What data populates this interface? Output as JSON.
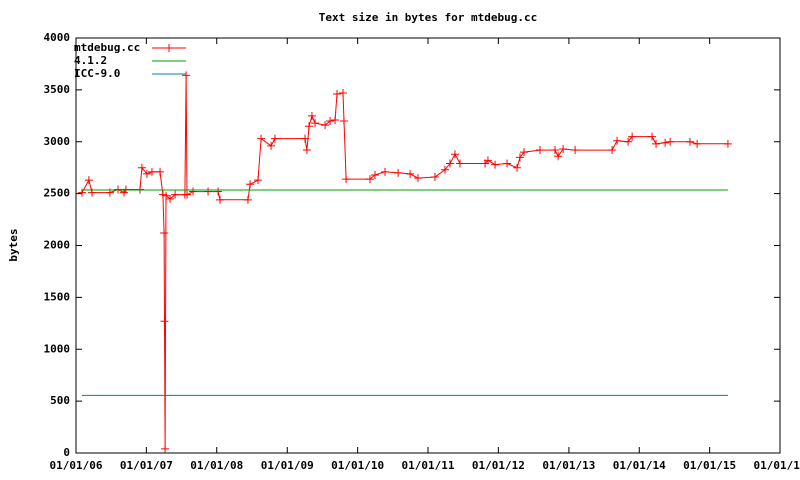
{
  "chart_data": {
    "type": "line",
    "title": "Text size in bytes for mtdebug.cc",
    "y_label": "bytes",
    "xlim": [
      "2006-01-01",
      "2016-01-01"
    ],
    "xticks": [
      {
        "value": "2006-01-01",
        "label": "01/01/06"
      },
      {
        "value": "2007-01-01",
        "label": "01/01/07"
      },
      {
        "value": "2008-01-01",
        "label": "01/01/08"
      },
      {
        "value": "2009-01-01",
        "label": "01/01/09"
      },
      {
        "value": "2010-01-01",
        "label": "01/01/10"
      },
      {
        "value": "2011-01-01",
        "label": "01/01/11"
      },
      {
        "value": "2012-01-01",
        "label": "01/01/12"
      },
      {
        "value": "2013-01-01",
        "label": "01/01/13"
      },
      {
        "value": "2014-01-01",
        "label": "01/01/14"
      },
      {
        "value": "2015-01-01",
        "label": "01/01/15"
      },
      {
        "value": "2016-01-01",
        "label": "01/01/16"
      }
    ],
    "ylim": [
      0,
      4000
    ],
    "yticks": [
      0,
      500,
      1000,
      1500,
      2000,
      2500,
      3000,
      3500,
      4000
    ],
    "legend": "top-left",
    "series": [
      {
        "name": "mtdebug.cc",
        "color": "#ff0000",
        "marker": "+",
        "x": [
          "2006-02-01",
          "2006-03-09",
          "2006-03-25",
          "2006-06-26",
          "2006-08-07",
          "2006-09-07",
          "2006-09-17",
          "2006-11-29",
          "2006-12-09",
          "2007-01-04",
          "2007-01-30",
          "2007-03-13",
          "2007-03-28",
          "2007-04-03",
          "2007-04-05",
          "2007-04-08",
          "2007-04-13",
          "2007-05-04",
          "2007-05-30",
          "2007-07-20",
          "2007-07-26",
          "2007-07-31",
          "2007-08-31",
          "2007-11-17",
          "2008-01-08",
          "2008-01-18",
          "2008-06-11",
          "2008-06-22",
          "2008-08-02",
          "2008-08-18",
          "2008-10-09",
          "2008-10-29",
          "2009-04-03",
          "2009-04-13",
          "2009-04-24",
          "2009-05-09",
          "2009-05-25",
          "2009-07-16",
          "2009-08-11",
          "2009-09-06",
          "2009-09-16",
          "2009-10-17",
          "2009-10-22",
          "2009-11-02",
          "2010-03-06",
          "2010-04-01",
          "2010-05-23",
          "2010-07-30",
          "2010-09-30",
          "2010-11-10",
          "2011-02-06",
          "2011-03-30",
          "2011-04-25",
          "2011-05-21",
          "2011-06-16",
          "2011-10-24",
          "2011-11-08",
          "2011-12-15",
          "2012-02-15",
          "2012-04-07",
          "2012-04-22",
          "2012-05-13",
          "2012-08-04",
          "2012-10-21",
          "2012-11-06",
          "2012-12-02",
          "2013-02-02",
          "2013-08-13",
          "2013-09-08",
          "2013-11-04",
          "2013-11-25",
          "2014-03-08",
          "2014-03-29",
          "2014-05-15",
          "2014-06-10",
          "2014-09-21",
          "2014-10-28",
          "2015-04-06"
        ],
        "values": [
          2510,
          2630,
          2510,
          2510,
          2540,
          2510,
          2540,
          2540,
          2750,
          2690,
          2710,
          2710,
          2490,
          2120,
          1270,
          40,
          2480,
          2450,
          2490,
          2490,
          3640,
          2490,
          2520,
          2520,
          2520,
          2440,
          2440,
          2590,
          2630,
          3030,
          2960,
          3030,
          3030,
          2920,
          3150,
          3250,
          3180,
          3160,
          3200,
          3210,
          3460,
          3470,
          3200,
          2640,
          2640,
          2680,
          2710,
          2700,
          2690,
          2650,
          2660,
          2730,
          2790,
          2880,
          2790,
          2790,
          2820,
          2780,
          2790,
          2750,
          2850,
          2900,
          2920,
          2920,
          2860,
          2930,
          2920,
          2920,
          3010,
          3000,
          3050,
          3050,
          2980,
          2990,
          3000,
          3000,
          2980,
          2980
        ]
      },
      {
        "name": "4.1.2",
        "color": "#00a000",
        "x": [
          "2006-02-01",
          "2015-04-06"
        ],
        "values": [
          2535,
          2535
        ]
      },
      {
        "name": "ICC-9.0",
        "color": "#0080a0",
        "x": [
          "2006-02-01",
          "2015-04-06"
        ],
        "values": [
          555,
          555
        ]
      }
    ]
  }
}
